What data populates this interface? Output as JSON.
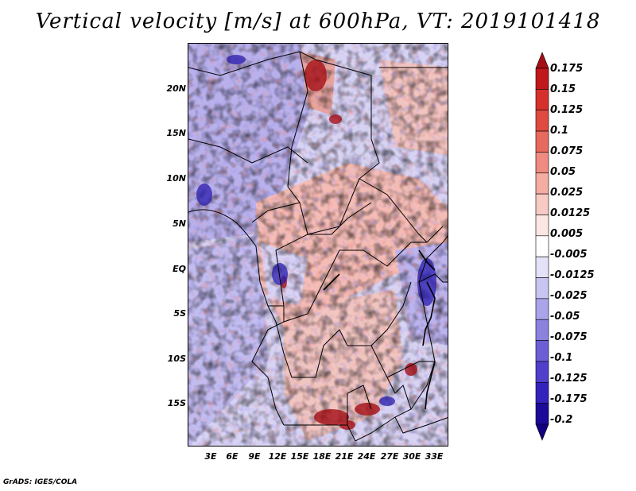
{
  "title": "Vertical velocity [m/s] at 600hPa, VT: 2019101418",
  "y_axis_labels": [
    "20N",
    "15N",
    "10N",
    "5N",
    "EQ",
    "5S",
    "10S",
    "15S"
  ],
  "x_axis_labels": [
    "3E",
    "6E",
    "9E",
    "12E",
    "15E",
    "18E",
    "21E",
    "24E",
    "27E",
    "30E",
    "33E"
  ],
  "colorbar": {
    "labels": [
      "0.175",
      "0.15",
      "0.125",
      "0.1",
      "0.075",
      "0.05",
      "0.025",
      "0.0125",
      "0.005",
      "-0.005",
      "-0.0125",
      "-0.025",
      "-0.05",
      "-0.075",
      "-0.1",
      "-0.125",
      "-0.175",
      "-0.2"
    ],
    "colors": [
      "#a50f15",
      "#c0181c",
      "#d6302c",
      "#e04a40",
      "#e86a5e",
      "#ef8b80",
      "#f4aca3",
      "#f8cac4",
      "#fce6e3",
      "#ffffff",
      "#e4e2f8",
      "#c9c5f2",
      "#aaa4ea",
      "#8b82e0",
      "#6c5fd6",
      "#4f3fcb",
      "#3322bc",
      "#1c0a99",
      "#120080"
    ]
  },
  "credit": "GrADS: IGES/COLA"
}
